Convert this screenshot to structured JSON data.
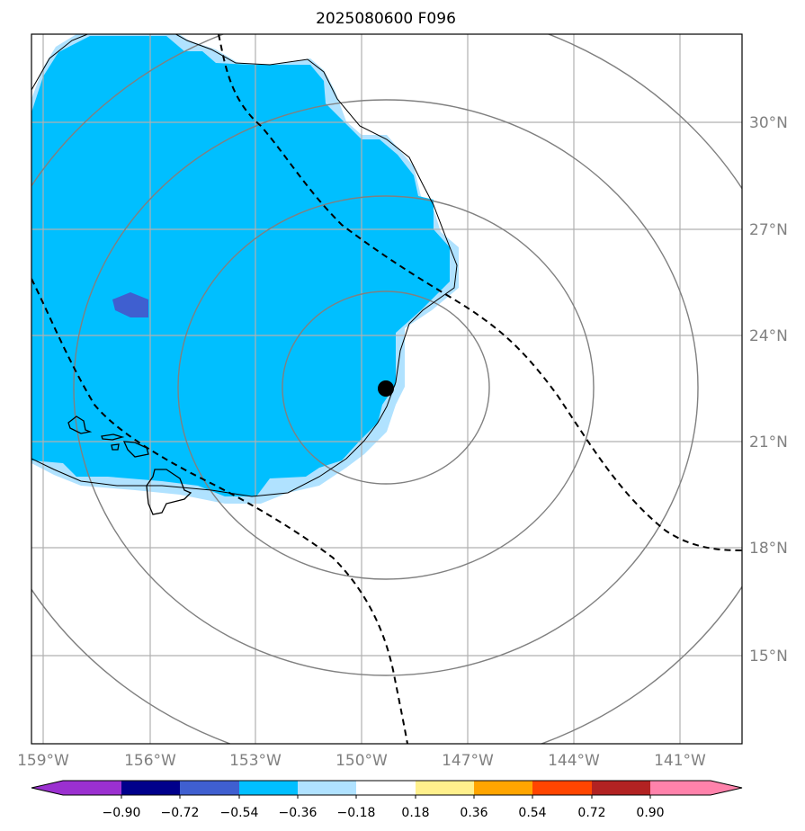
{
  "title": "2025080600 F096",
  "longitude_labels": [
    "159°W",
    "156°W",
    "153°W",
    "150°W",
    "147°W",
    "144°W",
    "141°W"
  ],
  "latitude_labels": [
    "30°N",
    "27°N",
    "24°N",
    "21°N",
    "18°N",
    "15°N"
  ],
  "colorbar": {
    "tick_labels": [
      "−0.90",
      "−0.72",
      "−0.54",
      "−0.36",
      "−0.18",
      "0.18",
      "0.36",
      "0.54",
      "0.72",
      "0.90"
    ],
    "colors": [
      "#9b30d0",
      "#00008b",
      "#3f5fd0",
      "#00bfff",
      "#b0e2ff",
      "#ffffff",
      "#fff08c",
      "#ffa500",
      "#ff4500",
      "#b22222",
      "#ff82ab"
    ]
  },
  "colors": {
    "field_dark_blue": "#3f5fd0",
    "field_blue": "#00bfff",
    "field_light_blue": "#b0e2ff",
    "range_rings": "#808080",
    "grid": "#b0b0b0",
    "track_lines": "#000000",
    "center_marker": "#000000"
  },
  "legend_markers": {
    "center_marker": "storm-center-dot",
    "track_lines": "dashed-black"
  }
}
